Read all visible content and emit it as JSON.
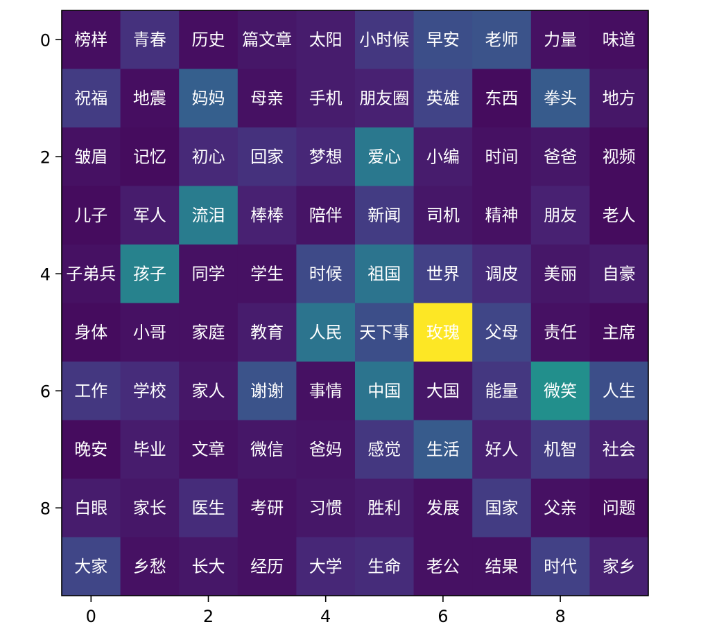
{
  "chart_data": {
    "type": "heatmap",
    "title": "",
    "xlabel": "",
    "ylabel": "",
    "colormap": "viridis",
    "value_range": [
      0,
      1
    ],
    "x_ticks": [
      "0",
      "2",
      "4",
      "6",
      "8"
    ],
    "y_ticks": [
      "0",
      "2",
      "4",
      "6",
      "8"
    ],
    "rows": [
      [
        "榜样",
        "青春",
        "历史",
        "篇文章",
        "太阳",
        "小时候",
        "早安",
        "老师",
        "力量",
        "味道"
      ],
      [
        "祝福",
        "地震",
        "妈妈",
        "母亲",
        "手机",
        "朋友圈",
        "英雄",
        "东西",
        "拳头",
        "地方"
      ],
      [
        "皱眉",
        "记忆",
        "初心",
        "回家",
        "梦想",
        "爱心",
        "小编",
        "时间",
        "爸爸",
        "视频"
      ],
      [
        "儿子",
        "军人",
        "流泪",
        "棒棒",
        "陪伴",
        "新闻",
        "司机",
        "精神",
        "朋友",
        "老人"
      ],
      [
        "子弟兵",
        "孩子",
        "同学",
        "学生",
        "时候",
        "祖国",
        "世界",
        "调皮",
        "美丽",
        "自豪"
      ],
      [
        "身体",
        "小哥",
        "家庭",
        "教育",
        "人民",
        "天下事",
        "玫瑰",
        "父母",
        "责任",
        "主席"
      ],
      [
        "工作",
        "学校",
        "家人",
        "谢谢",
        "事情",
        "中国",
        "大国",
        "能量",
        "微笑",
        "人生"
      ],
      [
        "晚安",
        "毕业",
        "文章",
        "微信",
        "爸妈",
        "感觉",
        "生活",
        "好人",
        "机智",
        "社会"
      ],
      [
        "白眼",
        "家长",
        "医生",
        "考研",
        "习惯",
        "胜利",
        "发展",
        "国家",
        "父亲",
        "问题"
      ],
      [
        "大家",
        "乡愁",
        "长大",
        "经历",
        "大学",
        "生命",
        "老公",
        "结果",
        "时代",
        "家乡"
      ]
    ],
    "values": [
      [
        0.05,
        0.18,
        0.05,
        0.08,
        0.1,
        0.2,
        0.3,
        0.32,
        0.06,
        0.05
      ],
      [
        0.22,
        0.05,
        0.38,
        0.06,
        0.1,
        0.12,
        0.25,
        0.04,
        0.36,
        0.08
      ],
      [
        0.06,
        0.04,
        0.15,
        0.18,
        0.14,
        0.5,
        0.1,
        0.06,
        0.08,
        0.04
      ],
      [
        0.04,
        0.1,
        0.52,
        0.12,
        0.07,
        0.22,
        0.08,
        0.06,
        0.12,
        0.04
      ],
      [
        0.06,
        0.55,
        0.06,
        0.06,
        0.28,
        0.48,
        0.24,
        0.16,
        0.08,
        0.1
      ],
      [
        0.04,
        0.06,
        0.06,
        0.1,
        0.48,
        0.3,
        1.0,
        0.26,
        0.06,
        0.04
      ],
      [
        0.2,
        0.16,
        0.08,
        0.32,
        0.06,
        0.48,
        0.08,
        0.2,
        0.62,
        0.3
      ],
      [
        0.04,
        0.1,
        0.06,
        0.08,
        0.07,
        0.2,
        0.36,
        0.12,
        0.22,
        0.12
      ],
      [
        0.1,
        0.08,
        0.16,
        0.06,
        0.08,
        0.1,
        0.06,
        0.22,
        0.06,
        0.04
      ],
      [
        0.26,
        0.06,
        0.08,
        0.06,
        0.14,
        0.16,
        0.06,
        0.06,
        0.24,
        0.12
      ]
    ]
  }
}
